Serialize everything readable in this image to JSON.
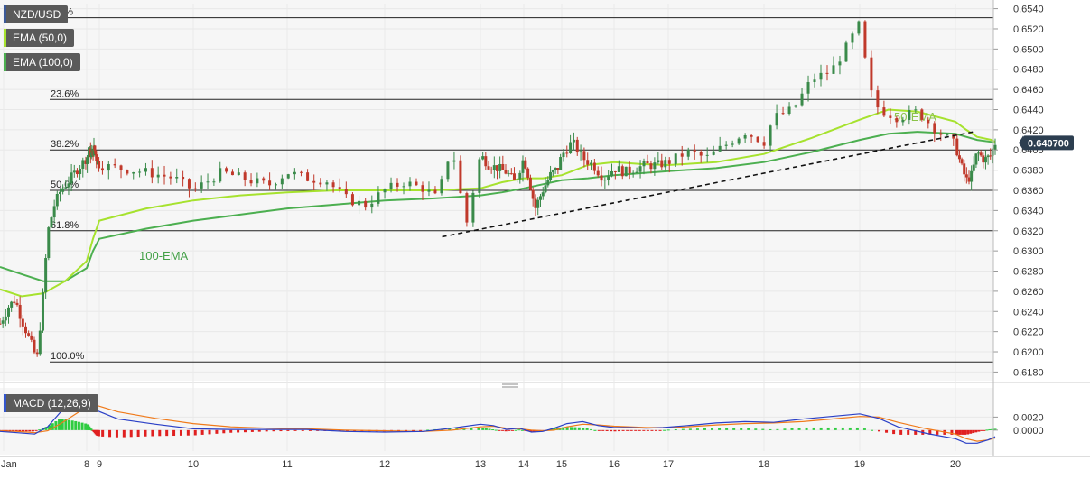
{
  "chart_data": [
    {
      "type": "candlestick",
      "symbol": "NZD/USD",
      "legend": [
        {
          "label": "NZD/USD",
          "color": "#3b5998"
        },
        {
          "label": "EMA (50,0)",
          "color": "#a6e22e"
        },
        {
          "label": "EMA (100,0)",
          "color": "#4caf50"
        }
      ],
      "ylim": [
        0.6175,
        0.6545
      ],
      "y_ticks": [
        "0.6540",
        "0.6520",
        "0.6500",
        "0.6480",
        "0.6460",
        "0.6440",
        "0.6420",
        "0.6400",
        "0.6380",
        "0.6360",
        "0.6340",
        "0.6320",
        "0.6300",
        "0.6280",
        "0.6260",
        "0.6240",
        "0.6220",
        "0.6200",
        "0.6180"
      ],
      "x_tick_labels": [
        "Jan",
        "8",
        "9",
        "10",
        "11",
        "12",
        "13",
        "14",
        "15",
        "16",
        "17",
        "18",
        "19",
        "20"
      ],
      "current_price": "0.640700",
      "fibonacci": [
        {
          "label": "0.0%",
          "price": 0.6531
        },
        {
          "label": "23.6%",
          "price": 0.645
        },
        {
          "label": "38.2%",
          "price": 0.64
        },
        {
          "label": "50.0%",
          "price": 0.636
        },
        {
          "label": "61.8%",
          "price": 0.632
        },
        {
          "label": "100.0%",
          "price": 0.619
        }
      ],
      "annotations": {
        "ema50": "50-EMA",
        "ema100": "100-EMA"
      },
      "trendline": {
        "from": [
          12.6,
          0.6314
        ],
        "to": [
          20.5,
          0.6418
        ]
      },
      "price_path": [
        [
          6.0,
          0.6228
        ],
        [
          6.2,
          0.6245
        ],
        [
          6.35,
          0.6252
        ],
        [
          6.5,
          0.6232
        ],
        [
          6.7,
          0.621
        ],
        [
          6.85,
          0.6192
        ],
        [
          7.0,
          0.626
        ],
        [
          7.1,
          0.6318
        ],
        [
          7.25,
          0.6345
        ],
        [
          7.4,
          0.636
        ],
        [
          7.6,
          0.637
        ],
        [
          7.8,
          0.6382
        ],
        [
          8.0,
          0.6392
        ],
        [
          8.2,
          0.6398
        ],
        [
          8.4,
          0.6395
        ],
        [
          8.6,
          0.6402
        ],
        [
          8.8,
          0.639
        ],
        [
          9.0,
          0.6385
        ],
        [
          9.2,
          0.6382
        ],
        [
          9.5,
          0.6378
        ],
        [
          9.8,
          0.6372
        ],
        [
          10.0,
          0.636
        ],
        [
          10.3,
          0.6378
        ],
        [
          10.6,
          0.637
        ],
        [
          10.8,
          0.6365
        ],
        [
          11.0,
          0.6378
        ],
        [
          11.2,
          0.6372
        ],
        [
          11.4,
          0.637
        ],
        [
          11.6,
          0.6352
        ],
        [
          11.8,
          0.6345
        ],
        [
          12.0,
          0.636
        ],
        [
          12.2,
          0.6368
        ],
        [
          12.4,
          0.6362
        ],
        [
          12.55,
          0.6352
        ],
        [
          12.7,
          0.6405
        ],
        [
          12.85,
          0.6325
        ],
        [
          13.0,
          0.6395
        ],
        [
          13.2,
          0.6385
        ],
        [
          13.4,
          0.6382
        ],
        [
          13.6,
          0.6378
        ],
        [
          13.8,
          0.6368
        ],
        [
          14.0,
          0.6392
        ],
        [
          14.1,
          0.6378
        ],
        [
          14.3,
          0.6342
        ],
        [
          14.5,
          0.636
        ],
        [
          14.7,
          0.6375
        ],
        [
          14.9,
          0.6382
        ],
        [
          15.0,
          0.6395
        ],
        [
          15.2,
          0.6408
        ],
        [
          15.4,
          0.6392
        ],
        [
          15.6,
          0.6385
        ],
        [
          15.8,
          0.6372
        ],
        [
          16.0,
          0.6382
        ],
        [
          16.2,
          0.6378
        ],
        [
          16.4,
          0.6382
        ],
        [
          16.6,
          0.6385
        ],
        [
          16.8,
          0.6385
        ],
        [
          17.0,
          0.6388
        ],
        [
          17.2,
          0.6398
        ],
        [
          17.4,
          0.6392
        ],
        [
          17.6,
          0.6405
        ],
        [
          17.8,
          0.6418
        ],
        [
          18.0,
          0.6408
        ],
        [
          18.1,
          0.6432
        ],
        [
          18.3,
          0.644
        ],
        [
          18.5,
          0.647
        ],
        [
          18.7,
          0.6478
        ],
        [
          18.85,
          0.65
        ],
        [
          19.0,
          0.6525
        ],
        [
          19.1,
          0.646
        ],
        [
          19.2,
          0.644
        ],
        [
          19.4,
          0.6432
        ],
        [
          19.6,
          0.6438
        ],
        [
          19.8,
          0.642
        ],
        [
          20.0,
          0.6405
        ],
        [
          20.15,
          0.6385
        ],
        [
          20.3,
          0.637
        ],
        [
          20.45,
          0.6375
        ],
        [
          20.6,
          0.6398
        ],
        [
          20.8,
          0.639
        ],
        [
          21.0,
          0.6395
        ],
        [
          21.1,
          0.6407
        ]
      ],
      "ema50": [
        [
          6.0,
          0.6262
        ],
        [
          6.5,
          0.6255
        ],
        [
          7.0,
          0.6258
        ],
        [
          7.5,
          0.627
        ],
        [
          8.0,
          0.629
        ],
        [
          8.5,
          0.6312
        ],
        [
          9.0,
          0.633
        ],
        [
          9.5,
          0.6342
        ],
        [
          10.0,
          0.635
        ],
        [
          10.5,
          0.6355
        ],
        [
          11.0,
          0.6358
        ],
        [
          11.5,
          0.636
        ],
        [
          12.0,
          0.636
        ],
        [
          12.5,
          0.636
        ],
        [
          13.0,
          0.6362
        ],
        [
          13.5,
          0.6368
        ],
        [
          14.0,
          0.6372
        ],
        [
          14.5,
          0.6372
        ],
        [
          15.0,
          0.6375
        ],
        [
          15.5,
          0.6385
        ],
        [
          16.0,
          0.6388
        ],
        [
          16.5,
          0.6386
        ],
        [
          17.0,
          0.6385
        ],
        [
          17.5,
          0.6388
        ],
        [
          18.0,
          0.6396
        ],
        [
          18.5,
          0.6412
        ],
        [
          19.0,
          0.643
        ],
        [
          19.3,
          0.644
        ],
        [
          19.6,
          0.6438
        ],
        [
          20.0,
          0.6428
        ],
        [
          20.3,
          0.642
        ],
        [
          20.6,
          0.6413
        ],
        [
          21.0,
          0.641
        ],
        [
          21.1,
          0.6408
        ]
      ],
      "ema100": [
        [
          6.0,
          0.6284
        ],
        [
          6.5,
          0.6277
        ],
        [
          7.0,
          0.627
        ],
        [
          7.5,
          0.627
        ],
        [
          8.0,
          0.6283
        ],
        [
          8.5,
          0.63
        ],
        [
          9.0,
          0.6312
        ],
        [
          9.5,
          0.6322
        ],
        [
          10.0,
          0.633
        ],
        [
          10.5,
          0.6336
        ],
        [
          11.0,
          0.6342
        ],
        [
          11.5,
          0.6346
        ],
        [
          12.0,
          0.635
        ],
        [
          12.5,
          0.6352
        ],
        [
          13.0,
          0.6355
        ],
        [
          13.5,
          0.6358
        ],
        [
          14.0,
          0.6362
        ],
        [
          14.5,
          0.6366
        ],
        [
          15.0,
          0.637
        ],
        [
          15.5,
          0.6372
        ],
        [
          16.0,
          0.6375
        ],
        [
          16.5,
          0.6377
        ],
        [
          17.0,
          0.6379
        ],
        [
          17.5,
          0.6382
        ],
        [
          18.0,
          0.6388
        ],
        [
          18.5,
          0.6398
        ],
        [
          19.0,
          0.641
        ],
        [
          19.3,
          0.6416
        ],
        [
          19.6,
          0.6418
        ],
        [
          20.0,
          0.6416
        ],
        [
          20.3,
          0.6413
        ],
        [
          20.6,
          0.641
        ],
        [
          21.0,
          0.6408
        ],
        [
          21.1,
          0.6407
        ]
      ]
    },
    {
      "type": "macd",
      "legend": "MACD (12,26,9)",
      "ylim": [
        -0.0032,
        0.0062
      ],
      "y_ticks": [
        "0.0020",
        "0.0000"
      ],
      "macd_line": [
        [
          6.0,
          -0.0002
        ],
        [
          6.4,
          -0.0004
        ],
        [
          6.8,
          -0.0006
        ],
        [
          7.1,
          0.0005
        ],
        [
          7.4,
          0.0028
        ],
        [
          7.8,
          0.004
        ],
        [
          8.1,
          0.0046
        ],
        [
          8.4,
          0.0043
        ],
        [
          8.8,
          0.003
        ],
        [
          9.2,
          0.0017
        ],
        [
          9.6,
          0.0009
        ],
        [
          10.0,
          0.0002
        ],
        [
          10.4,
          0.0001
        ],
        [
          10.8,
          0.0001
        ],
        [
          11.2,
          0.0001
        ],
        [
          11.6,
          -0.0002
        ],
        [
          12.0,
          -0.0003
        ],
        [
          12.4,
          -0.0002
        ],
        [
          12.7,
          0.0003
        ],
        [
          13.0,
          0.0009
        ],
        [
          13.3,
          0.0007
        ],
        [
          13.6,
          0.0001
        ],
        [
          13.9,
          0.0003
        ],
        [
          14.2,
          -0.0003
        ],
        [
          14.5,
          -0.0002
        ],
        [
          14.8,
          0.0003
        ],
        [
          15.1,
          0.001
        ],
        [
          15.4,
          0.0013
        ],
        [
          15.7,
          0.0007
        ],
        [
          16.0,
          0.0004
        ],
        [
          16.3,
          0.0004
        ],
        [
          16.6,
          0.0003
        ],
        [
          16.9,
          0.0004
        ],
        [
          17.2,
          0.0007
        ],
        [
          17.5,
          0.0011
        ],
        [
          17.8,
          0.0013
        ],
        [
          18.1,
          0.0012
        ],
        [
          18.4,
          0.0017
        ],
        [
          18.7,
          0.0021
        ],
        [
          19.0,
          0.0025
        ],
        [
          19.2,
          0.0018
        ],
        [
          19.4,
          0.0005
        ],
        [
          19.7,
          -0.0005
        ],
        [
          20.0,
          -0.0013
        ],
        [
          20.3,
          -0.002
        ],
        [
          20.6,
          -0.002
        ],
        [
          20.9,
          -0.0015
        ],
        [
          21.1,
          -0.001
        ]
      ],
      "signal_line": [
        [
          6.0,
          -0.0001
        ],
        [
          6.4,
          -0.0002
        ],
        [
          6.8,
          -0.0004
        ],
        [
          7.1,
          -0.0001
        ],
        [
          7.4,
          0.001
        ],
        [
          7.8,
          0.0027
        ],
        [
          8.1,
          0.0038
        ],
        [
          8.4,
          0.0042
        ],
        [
          8.8,
          0.0038
        ],
        [
          9.2,
          0.0028
        ],
        [
          9.6,
          0.0018
        ],
        [
          10.0,
          0.001
        ],
        [
          10.4,
          0.0005
        ],
        [
          10.8,
          0.0003
        ],
        [
          11.2,
          0.0002
        ],
        [
          11.6,
          0.0
        ],
        [
          12.0,
          -0.0001
        ],
        [
          12.4,
          -0.0002
        ],
        [
          12.7,
          0.0
        ],
        [
          13.0,
          0.0005
        ],
        [
          13.3,
          0.0006
        ],
        [
          13.6,
          0.0003
        ],
        [
          13.9,
          0.0002
        ],
        [
          14.2,
          0.0
        ],
        [
          14.5,
          -0.0001
        ],
        [
          14.8,
          0.0
        ],
        [
          15.1,
          0.0005
        ],
        [
          15.4,
          0.0009
        ],
        [
          15.7,
          0.0008
        ],
        [
          16.0,
          0.0006
        ],
        [
          16.3,
          0.0005
        ],
        [
          16.6,
          0.0004
        ],
        [
          16.9,
          0.0004
        ],
        [
          17.2,
          0.0005
        ],
        [
          17.5,
          0.0008
        ],
        [
          17.8,
          0.001
        ],
        [
          18.1,
          0.0011
        ],
        [
          18.4,
          0.0013
        ],
        [
          18.7,
          0.0017
        ],
        [
          19.0,
          0.0021
        ],
        [
          19.2,
          0.002
        ],
        [
          19.4,
          0.0012
        ],
        [
          19.7,
          0.0002
        ],
        [
          20.0,
          -0.0006
        ],
        [
          20.3,
          -0.0013
        ],
        [
          20.6,
          -0.0017
        ],
        [
          20.9,
          -0.0015
        ],
        [
          21.1,
          -0.0012
        ]
      ],
      "histogram": [
        [
          6.0,
          -0.0001
        ],
        [
          6.4,
          -0.0002
        ],
        [
          6.8,
          -0.0002
        ],
        [
          7.1,
          0.0006
        ],
        [
          7.4,
          0.0018
        ],
        [
          7.8,
          0.0013
        ],
        [
          8.1,
          0.0008
        ],
        [
          8.4,
          0.0001
        ],
        [
          8.8,
          -0.0008
        ],
        [
          9.2,
          -0.0011
        ],
        [
          9.6,
          -0.0009
        ],
        [
          10.0,
          -0.0008
        ],
        [
          10.4,
          -0.0004
        ],
        [
          10.8,
          -0.0002
        ],
        [
          11.2,
          -0.0001
        ],
        [
          11.6,
          -0.0002
        ],
        [
          12.0,
          -0.0002
        ],
        [
          12.4,
          0.0
        ],
        [
          12.7,
          0.0003
        ],
        [
          13.0,
          0.0004
        ],
        [
          13.3,
          0.0001
        ],
        [
          13.6,
          -0.0002
        ],
        [
          13.9,
          0.0001
        ],
        [
          14.2,
          -0.0003
        ],
        [
          14.5,
          -0.0001
        ],
        [
          14.8,
          0.0003
        ],
        [
          15.1,
          0.0005
        ],
        [
          15.4,
          0.0004
        ],
        [
          15.7,
          -0.0001
        ],
        [
          16.0,
          -0.0002
        ],
        [
          16.3,
          -0.0001
        ],
        [
          16.6,
          -0.0001
        ],
        [
          16.9,
          0.0
        ],
        [
          17.2,
          0.0002
        ],
        [
          17.5,
          0.0003
        ],
        [
          17.8,
          0.0003
        ],
        [
          18.1,
          0.0001
        ],
        [
          18.4,
          0.0004
        ],
        [
          18.7,
          0.0004
        ],
        [
          19.0,
          0.0004
        ],
        [
          19.2,
          -0.0002
        ],
        [
          19.4,
          -0.0007
        ],
        [
          19.7,
          -0.0007
        ],
        [
          20.0,
          -0.0007
        ],
        [
          20.3,
          -0.0007
        ],
        [
          20.6,
          -0.0003
        ],
        [
          20.9,
          0.0001
        ],
        [
          21.1,
          0.0002
        ]
      ]
    }
  ]
}
